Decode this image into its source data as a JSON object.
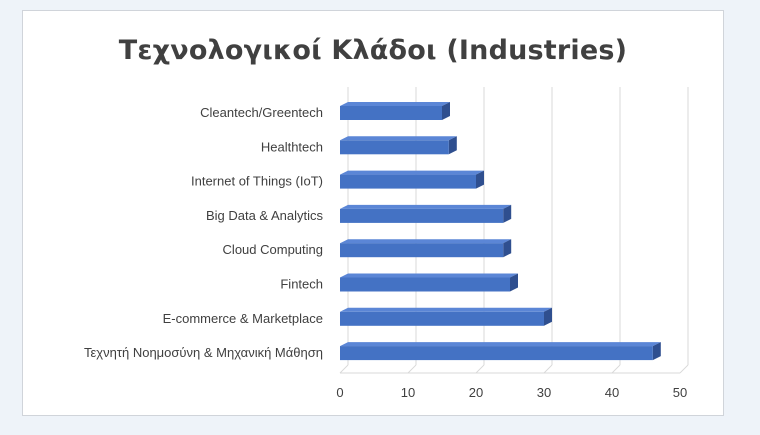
{
  "colors": {
    "bar_front": "#4472c4",
    "bar_top": "#5b86d6",
    "bar_side": "#2f4f8f",
    "gridline": "#d9d9d9",
    "text": "#404040"
  },
  "chart_data": {
    "type": "bar",
    "orientation": "horizontal",
    "title": "Τεχνολογικοί Κλάδοι (Industries)",
    "xlabel": "",
    "ylabel": "",
    "categories": [
      "Cleantech/Greentech",
      "Healthtech",
      "Internet of Things (IoT)",
      "Big Data & Analytics",
      "Cloud Computing",
      "Fintech",
      "E-commerce & Marketplace",
      "Τεχνητή Νοημοσύνη & Μηχανική Μάθηση"
    ],
    "values": [
      15,
      16,
      20,
      24,
      24,
      25,
      30,
      46
    ],
    "xlim": [
      0,
      50
    ],
    "xticks": [
      0,
      10,
      20,
      30,
      40,
      50
    ],
    "grid": true,
    "legend": "none",
    "style": "3d"
  }
}
